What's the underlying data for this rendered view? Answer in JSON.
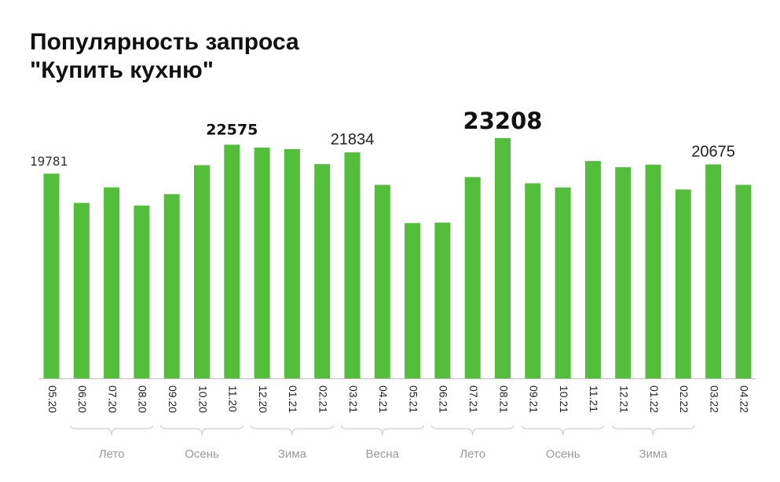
{
  "title_line1": "Популярность запроса",
  "title_line2": "\"Купить кухню\"",
  "chart_data": {
    "type": "bar",
    "title": "Популярность запроса \"Купить кухню\"",
    "categories": [
      "05.20",
      "06.20",
      "07.20",
      "08.20",
      "09.20",
      "10.20",
      "11.20",
      "12.20",
      "01.21",
      "02.21",
      "03.21",
      "04.21",
      "05.21",
      "06.21",
      "07.21",
      "08.21",
      "09.21",
      "10.21",
      "11.21",
      "12.21",
      "01.22",
      "02.22",
      "03.22",
      "04.22"
    ],
    "values": [
      19781,
      16950,
      18450,
      16700,
      17800,
      20600,
      22575,
      22300,
      22150,
      20700,
      21834,
      18700,
      15000,
      15050,
      19450,
      23208,
      18850,
      18450,
      21000,
      20400,
      20650,
      18250,
      20675,
      18700
    ],
    "ylim": [
      0,
      23208
    ],
    "grid": false,
    "bar_color": "#52be3a",
    "labels": [
      {
        "index": 0,
        "text": "19781",
        "style": "small"
      },
      {
        "index": 6,
        "text": "22575",
        "style": "bold"
      },
      {
        "index": 10,
        "text": "21834",
        "style": "normal"
      },
      {
        "index": 15,
        "text": "23208",
        "style": "large-bold"
      },
      {
        "index": 22,
        "text": "20675",
        "style": "normal"
      }
    ],
    "season_groups": [
      {
        "name": "Лето",
        "from": 1,
        "to": 3
      },
      {
        "name": "Осень",
        "from": 4,
        "to": 6
      },
      {
        "name": "Зима",
        "from": 7,
        "to": 9
      },
      {
        "name": "Весна",
        "from": 10,
        "to": 12
      },
      {
        "name": "Лето",
        "from": 13,
        "to": 15
      },
      {
        "name": "Осень",
        "from": 16,
        "to": 18
      },
      {
        "name": "Зима",
        "from": 19,
        "to": 21
      }
    ]
  }
}
